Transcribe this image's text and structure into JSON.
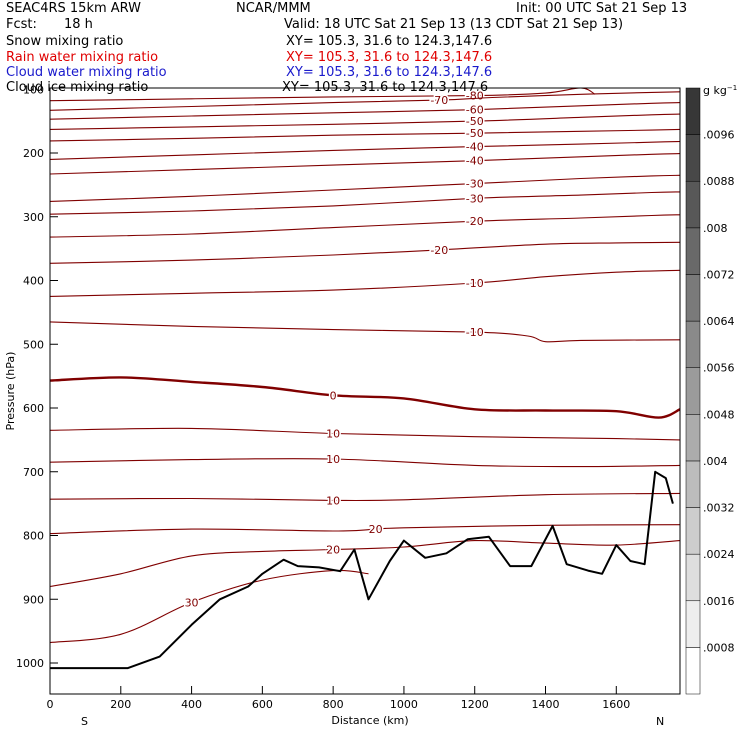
{
  "header": {
    "model": "SEAC4RS 15km ARW",
    "center": "NCAR/MMM",
    "init": "Init: 00 UTC Sat 21 Sep 13",
    "fcst_label": "Fcst:",
    "fcst_value": "18 h",
    "valid": "Valid: 18 UTC Sat 21 Sep 13 (13 CDT Sat 21 Sep 13)"
  },
  "fields": [
    {
      "name": "Snow mixing ratio",
      "xy": "XY= 105.3, 31.6 to 124.3,147.6",
      "color": "#000000"
    },
    {
      "name": "Rain water mixing ratio",
      "xy": "XY= 105.3, 31.6 to 124.3,147.6",
      "color": "#e00000"
    },
    {
      "name": "Cloud water mixing ratio",
      "xy": "XY= 105.3, 31.6 to 124.3,147.6",
      "color": "#1a1acc"
    },
    {
      "name": "Cloud ice mixing ratio",
      "xy": "XY= 105.3, 31.6 to 124.3,147.6",
      "color": "#000000"
    }
  ],
  "colors": {
    "contour": "#800000",
    "terrain": "#000000"
  },
  "chart_data": {
    "type": "line",
    "title": "",
    "xlabel": "Distance (km)",
    "ylabel": "Pressure (hPa)",
    "xlim": [
      0,
      1780
    ],
    "ylim": [
      1050,
      100
    ],
    "x_ticks": [
      0,
      200,
      400,
      600,
      800,
      1000,
      1200,
      1400,
      1600
    ],
    "y_ticks": [
      200,
      300,
      400,
      500,
      600,
      700,
      800,
      900,
      1000
    ],
    "y_ticks_partial": [
      100
    ],
    "endpoints": {
      "left": "S",
      "right": "N"
    },
    "colorbar": {
      "unit": "g kg",
      "unit_exponent": "−1",
      "labels": [
        ".0008",
        ".0016",
        ".0024",
        ".0032",
        ".004",
        ".0048",
        ".0056",
        ".0064",
        ".0072",
        ".008",
        ".0088",
        ".0096"
      ]
    },
    "temperature_isotherms": [
      {
        "value": -80,
        "points": [
          [
            0,
            118
          ],
          [
            400,
            115
          ],
          [
            800,
            112
          ],
          [
            1200,
            110
          ],
          [
            1400,
            106
          ],
          [
            1500,
            98
          ],
          [
            1540,
            108
          ]
        ]
      },
      {
        "value": -70,
        "points": [
          [
            0,
            133
          ],
          [
            400,
            127
          ],
          [
            800,
            121
          ],
          [
            1100,
            117
          ],
          [
            1250,
            113
          ],
          [
            1500,
            108
          ],
          [
            1700,
            105
          ],
          [
            1780,
            104
          ]
        ]
      },
      {
        "value": -60,
        "points": [
          [
            0,
            147
          ],
          [
            400,
            142
          ],
          [
            800,
            137
          ],
          [
            1200,
            132
          ],
          [
            1500,
            126
          ],
          [
            1700,
            122
          ],
          [
            1780,
            121
          ]
        ]
      },
      {
        "value": -50,
        "points": [
          [
            0,
            163
          ],
          [
            400,
            159
          ],
          [
            800,
            155
          ],
          [
            1200,
            150
          ],
          [
            1500,
            144
          ],
          [
            1700,
            140
          ],
          [
            1780,
            139
          ]
        ]
      },
      {
        "value": -50,
        "points": [
          [
            0,
            181
          ],
          [
            400,
            177
          ],
          [
            800,
            172
          ],
          [
            1200,
            169
          ],
          [
            1500,
            166
          ],
          [
            1700,
            164
          ],
          [
            1780,
            163
          ]
        ]
      },
      {
        "value": -40,
        "points": [
          [
            0,
            210
          ],
          [
            400,
            203
          ],
          [
            800,
            196
          ],
          [
            1200,
            190
          ],
          [
            1500,
            186
          ],
          [
            1700,
            183
          ],
          [
            1780,
            182
          ]
        ]
      },
      {
        "value": -40,
        "points": [
          [
            0,
            233
          ],
          [
            400,
            226
          ],
          [
            800,
            219
          ],
          [
            1200,
            212
          ],
          [
            1500,
            206
          ],
          [
            1700,
            202
          ],
          [
            1780,
            201
          ]
        ]
      },
      {
        "value": -30,
        "points": [
          [
            0,
            276
          ],
          [
            400,
            268
          ],
          [
            800,
            258
          ],
          [
            1200,
            248
          ],
          [
            1500,
            240
          ],
          [
            1700,
            236
          ],
          [
            1780,
            235
          ]
        ]
      },
      {
        "value": -30,
        "points": [
          [
            0,
            296
          ],
          [
            400,
            291
          ],
          [
            800,
            283
          ],
          [
            1200,
            271
          ],
          [
            1500,
            266
          ],
          [
            1700,
            262
          ],
          [
            1780,
            261
          ]
        ]
      },
      {
        "value": -20,
        "points": [
          [
            0,
            332
          ],
          [
            400,
            327
          ],
          [
            800,
            317
          ],
          [
            1200,
            307
          ],
          [
            1500,
            302
          ],
          [
            1700,
            298
          ],
          [
            1780,
            297
          ]
        ]
      },
      {
        "value": -20,
        "points": [
          [
            0,
            373
          ],
          [
            400,
            368
          ],
          [
            800,
            360
          ],
          [
            1100,
            352
          ],
          [
            1400,
            343
          ],
          [
            1600,
            341
          ],
          [
            1780,
            340
          ]
        ]
      },
      {
        "value": -10,
        "points": [
          [
            0,
            425
          ],
          [
            400,
            420
          ],
          [
            800,
            415
          ],
          [
            1200,
            404
          ],
          [
            1400,
            394
          ],
          [
            1600,
            387
          ],
          [
            1780,
            384
          ]
        ]
      },
      {
        "value": -10,
        "points": [
          [
            0,
            465
          ],
          [
            400,
            472
          ],
          [
            800,
            477
          ],
          [
            1200,
            481
          ],
          [
            1350,
            487
          ],
          [
            1400,
            496
          ],
          [
            1500,
            494
          ],
          [
            1780,
            493
          ]
        ]
      },
      {
        "value": 0,
        "points": [
          [
            0,
            557
          ],
          [
            200,
            552
          ],
          [
            400,
            559
          ],
          [
            600,
            567
          ],
          [
            800,
            580
          ],
          [
            1000,
            585
          ],
          [
            1200,
            602
          ],
          [
            1400,
            604
          ],
          [
            1600,
            605
          ],
          [
            1720,
            615
          ],
          [
            1780,
            602
          ]
        ]
      },
      {
        "value": 10,
        "points": [
          [
            0,
            635
          ],
          [
            400,
            632
          ],
          [
            800,
            640
          ],
          [
            1200,
            645
          ],
          [
            1600,
            648
          ],
          [
            1780,
            650
          ]
        ]
      },
      {
        "value": 10,
        "points": [
          [
            0,
            685
          ],
          [
            400,
            681
          ],
          [
            800,
            680
          ],
          [
            1200,
            690
          ],
          [
            1500,
            692
          ],
          [
            1780,
            690
          ]
        ]
      },
      {
        "value": 10,
        "points": [
          [
            0,
            743
          ],
          [
            400,
            742
          ],
          [
            800,
            745
          ],
          [
            1000,
            744
          ],
          [
            1400,
            736
          ],
          [
            1780,
            734
          ]
        ]
      },
      {
        "value": 20,
        "points": [
          [
            0,
            797
          ],
          [
            400,
            790
          ],
          [
            800,
            793
          ],
          [
            920,
            790
          ],
          [
            1000,
            788
          ],
          [
            1400,
            784
          ],
          [
            1780,
            783
          ]
        ]
      },
      {
        "value": 20,
        "points": [
          [
            0,
            880
          ],
          [
            200,
            860
          ],
          [
            400,
            832
          ],
          [
            600,
            825
          ],
          [
            800,
            822
          ],
          [
            1000,
            818
          ],
          [
            1200,
            808
          ],
          [
            1400,
            812
          ],
          [
            1600,
            815
          ],
          [
            1780,
            808
          ]
        ]
      },
      {
        "value": 30,
        "points": [
          [
            0,
            968
          ],
          [
            200,
            955
          ],
          [
            400,
            905
          ],
          [
            600,
            870
          ],
          [
            800,
            855
          ],
          [
            900,
            860
          ]
        ]
      }
    ],
    "terrain_pressure": {
      "x": [
        0,
        220,
        310,
        400,
        480,
        560,
        600,
        660,
        700,
        760,
        820,
        860,
        900,
        960,
        1000,
        1060,
        1120,
        1180,
        1240,
        1300,
        1360,
        1420,
        1460,
        1520,
        1560,
        1600,
        1640,
        1680,
        1710,
        1740,
        1760
      ],
      "y": [
        1008,
        1008,
        990,
        940,
        900,
        880,
        860,
        838,
        848,
        850,
        856,
        822,
        900,
        840,
        808,
        835,
        828,
        806,
        802,
        848,
        848,
        785,
        845,
        855,
        860,
        815,
        840,
        845,
        700,
        710,
        750
      ]
    }
  }
}
